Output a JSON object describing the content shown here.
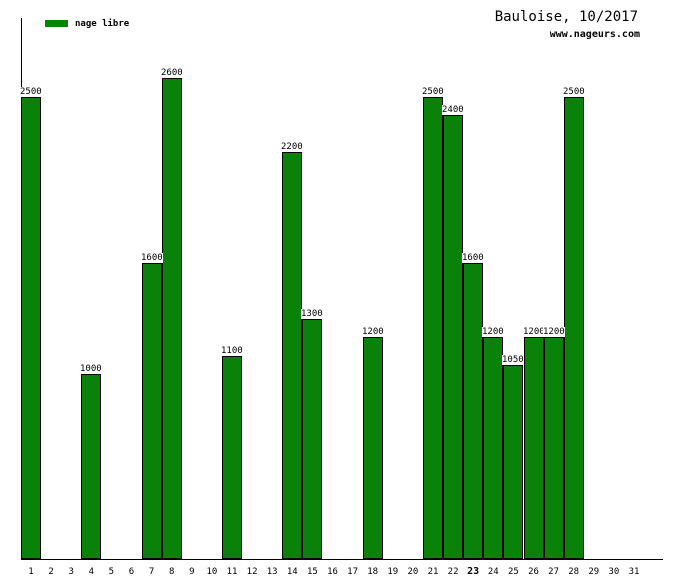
{
  "header": {
    "title": "Bauloise, 10/2017",
    "subtitle": "www.nageurs.com"
  },
  "legend": {
    "label": "nage libre"
  },
  "colors": {
    "bar_fill": "#0a820a",
    "bar_border": "#000000",
    "axis": "#000000",
    "text": "#000000",
    "value_label_bg": "#ffffff"
  },
  "chart_data": {
    "type": "bar",
    "title": "Bauloise, 10/2017",
    "subtitle": "www.nageurs.com",
    "legend": [
      "nage libre"
    ],
    "legend_position": "top-left",
    "xlabel": "",
    "ylabel": "",
    "grid": false,
    "value_labels_shown": true,
    "highlighted_category": 23,
    "ylim": [
      0,
      2925
    ],
    "categories": [
      1,
      2,
      3,
      4,
      5,
      6,
      7,
      8,
      9,
      10,
      11,
      12,
      13,
      14,
      15,
      16,
      17,
      18,
      19,
      20,
      21,
      22,
      23,
      24,
      25,
      26,
      27,
      28,
      29,
      30,
      31
    ],
    "values": [
      2500,
      null,
      null,
      1000,
      null,
      null,
      1600,
      2600,
      null,
      null,
      1100,
      null,
      null,
      2200,
      1300,
      null,
      null,
      1200,
      null,
      null,
      2500,
      2400,
      1600,
      1200,
      1050,
      1200,
      1200,
      2500,
      null,
      null,
      null
    ],
    "bar_color": "#0a820a",
    "bar_border_color": "#000000"
  }
}
